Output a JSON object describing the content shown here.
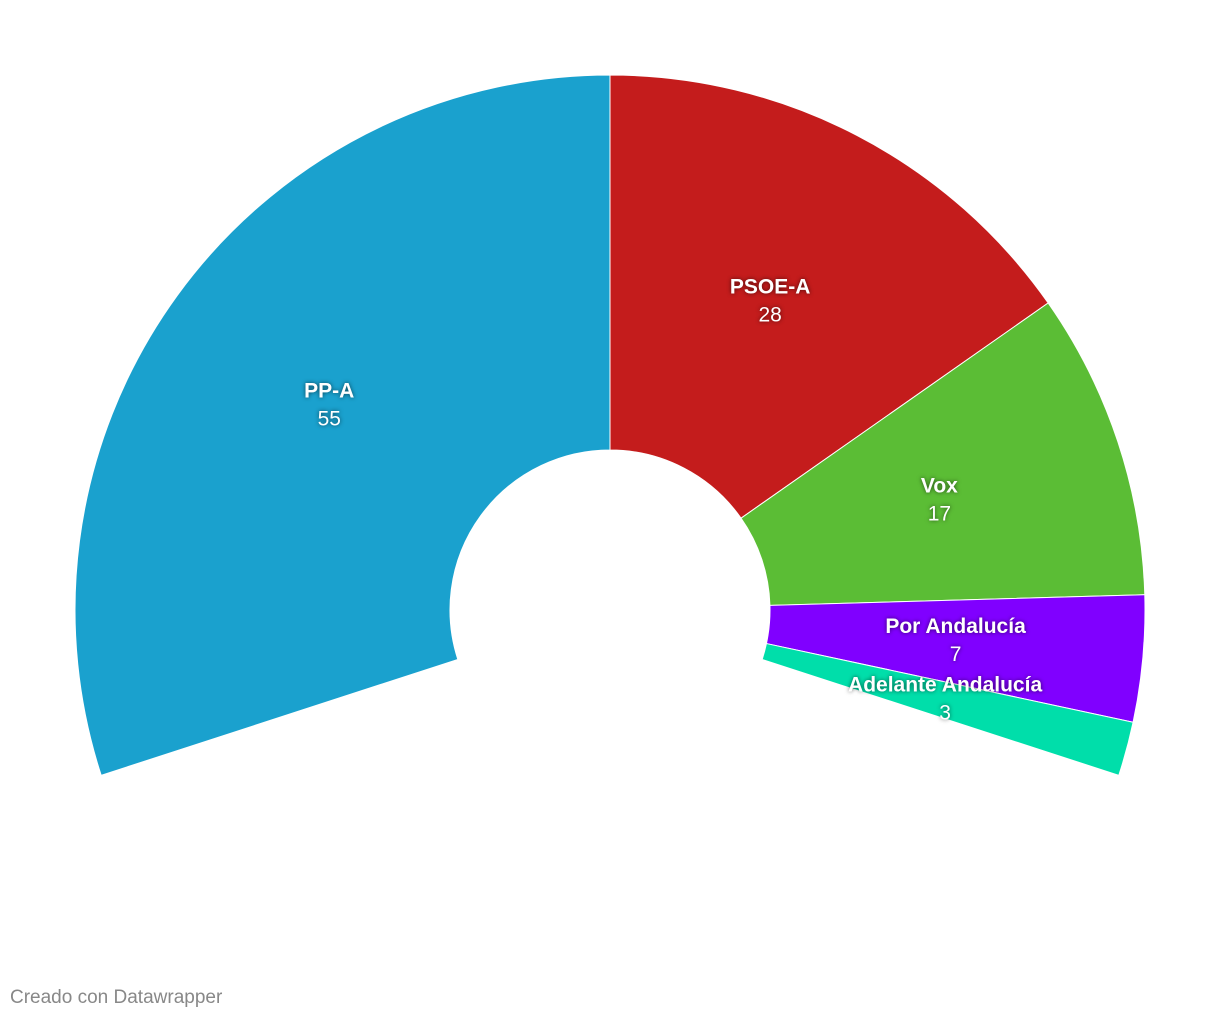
{
  "chart_data": {
    "type": "pie",
    "categories": [
      "PP-A",
      "PSOE-A",
      "Vox",
      "Por Andalucía",
      "Adelante Andalucía"
    ],
    "values": [
      55,
      28,
      17,
      7,
      3
    ],
    "colors": [
      "#1aa1ce",
      "#c41c1c",
      "#5bbd35",
      "#8000ff",
      "#00deaa"
    ],
    "footer": "Creado con Datawrapper"
  }
}
